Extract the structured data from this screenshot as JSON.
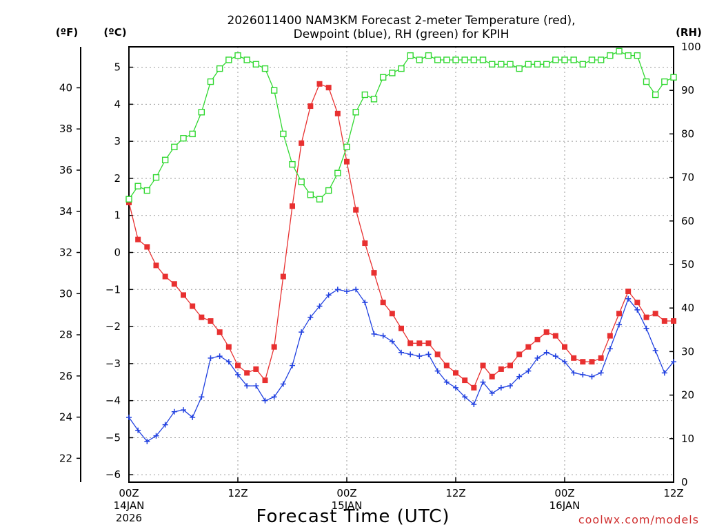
{
  "chart_data": {
    "type": "line",
    "title_line1": "2026011400 NAM3KM Forecast 2-meter Temperature (red),",
    "title_line2": "Dewpoint (blue), RH (green) for KPIH",
    "unit_f": "(ºF)",
    "unit_c": "(ºC)",
    "unit_rh": "(RH)",
    "xlabel": "Forecast Time (UTC)",
    "credit": "coolwx.com/models",
    "xlim_hours": [
      0,
      60
    ],
    "ylim_c": [
      -6.2,
      5.55
    ],
    "ylim_rh": [
      0,
      100
    ],
    "f_ticks": [
      22,
      24,
      26,
      28,
      30,
      32,
      34,
      36,
      38,
      40
    ],
    "c_ticks": [
      -6,
      -5,
      -4,
      -3,
      -2,
      -1,
      0,
      1,
      2,
      3,
      4,
      5
    ],
    "rh_ticks": [
      0,
      10,
      20,
      30,
      40,
      50,
      60,
      70,
      80,
      90,
      100
    ],
    "x_ticks": [
      {
        "h": 0,
        "label": "00Z",
        "date": "14JAN",
        "year": "2026"
      },
      {
        "h": 12,
        "label": "12Z",
        "date": "",
        "year": ""
      },
      {
        "h": 24,
        "label": "00Z",
        "date": "15JAN",
        "year": ""
      },
      {
        "h": 36,
        "label": "12Z",
        "date": "",
        "year": ""
      },
      {
        "h": 48,
        "label": "00Z",
        "date": "16JAN",
        "year": ""
      },
      {
        "h": 60,
        "label": "12Z",
        "date": "",
        "year": ""
      }
    ],
    "series": [
      {
        "name": "Temperature (°C)",
        "color": "#e83030",
        "marker": "filled-square",
        "values": [
          1.35,
          0.35,
          0.15,
          -0.35,
          -0.65,
          -0.85,
          -1.15,
          -1.45,
          -1.75,
          -1.85,
          -2.15,
          -2.55,
          -3.05,
          -3.25,
          -3.15,
          -3.45,
          -2.55,
          -0.65,
          1.25,
          2.95,
          3.95,
          4.55,
          4.45,
          3.75,
          2.45,
          1.15,
          0.25,
          -0.55,
          -1.35,
          -1.65,
          -2.05,
          -2.45,
          -2.45,
          -2.45,
          -2.75,
          -3.05,
          -3.25,
          -3.45,
          -3.65,
          -3.05,
          -3.35,
          -3.15,
          -3.05,
          -2.75,
          -2.55,
          -2.35,
          -2.15,
          -2.25,
          -2.55,
          -2.85,
          -2.95,
          -2.95,
          -2.85,
          -2.25,
          -1.65,
          -1.05,
          -1.35,
          -1.75,
          -1.65,
          -1.85,
          -1.85
        ]
      },
      {
        "name": "Dewpoint (°C)",
        "color": "#2040e0",
        "marker": "plus",
        "values": [
          -4.45,
          -4.8,
          -5.1,
          -4.95,
          -4.65,
          -4.3,
          -4.25,
          -4.45,
          -3.9,
          -2.85,
          -2.8,
          -2.95,
          -3.3,
          -3.6,
          -3.6,
          -4.0,
          -3.9,
          -3.55,
          -3.05,
          -2.15,
          -1.75,
          -1.45,
          -1.15,
          -1.0,
          -1.05,
          -1.0,
          -1.35,
          -2.2,
          -2.25,
          -2.4,
          -2.7,
          -2.75,
          -2.8,
          -2.75,
          -3.2,
          -3.5,
          -3.65,
          -3.9,
          -4.1,
          -3.5,
          -3.8,
          -3.65,
          -3.6,
          -3.35,
          -3.2,
          -2.85,
          -2.7,
          -2.8,
          -2.95,
          -3.25,
          -3.3,
          -3.35,
          -3.25,
          -2.6,
          -1.95,
          -1.25,
          -1.55,
          -2.05,
          -2.65,
          -3.25,
          -2.95
        ]
      },
      {
        "name": "RH (%)",
        "color": "#30d830",
        "marker": "open-square",
        "values": [
          65,
          68,
          67,
          70,
          74,
          77,
          79,
          80,
          85,
          92,
          95,
          97,
          98,
          97,
          96,
          95,
          90,
          80,
          73,
          69,
          66,
          65,
          67,
          71,
          77,
          85,
          89,
          88,
          93,
          94,
          95,
          98,
          97,
          98,
          97,
          97,
          97,
          97,
          97,
          97,
          96,
          96,
          96,
          95,
          96,
          96,
          96,
          97,
          97,
          97,
          96,
          97,
          97,
          98,
          99,
          98,
          98,
          92,
          89,
          92,
          93
        ]
      }
    ]
  }
}
